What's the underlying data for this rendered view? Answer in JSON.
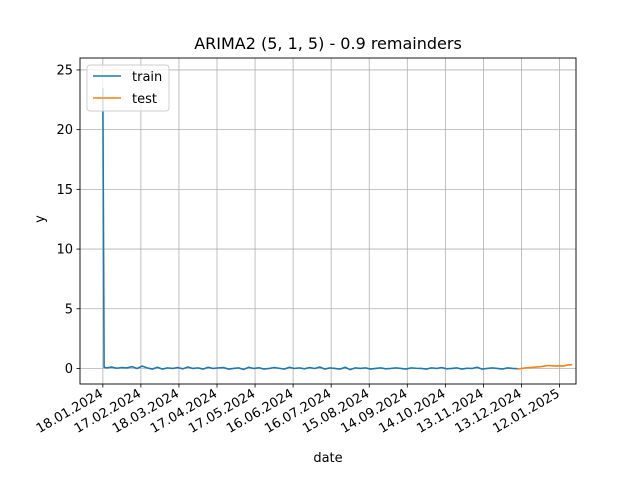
{
  "chart_data": {
    "type": "line",
    "title": "ARIMA2 (5, 1, 5) - 0.9 remainders",
    "xlabel": "date",
    "ylabel": "y",
    "x_ticks": [
      "18.01.2024",
      "17.02.2024",
      "18.03.2024",
      "17.04.2024",
      "17.05.2024",
      "16.06.2024",
      "16.07.2024",
      "15.08.2024",
      "14.09.2024",
      "14.10.2024",
      "13.11.2024",
      "13.12.2024",
      "12.01.2025"
    ],
    "y_ticks": [
      0,
      5,
      10,
      15,
      20,
      25
    ],
    "xlim": [
      "2024-01-18",
      "2025-01-25"
    ],
    "ylim": [
      -1.3,
      26
    ],
    "grid": true,
    "legend_position": "top-left",
    "colors": {
      "train": "#1f77b4",
      "test": "#ff7f0e"
    },
    "series": [
      {
        "name": "train",
        "color": "#1f77b4",
        "x": [
          "2024-01-18",
          "2024-01-19",
          "2024-01-21",
          "2024-01-25",
          "2024-01-29",
          "2024-02-02",
          "2024-02-06",
          "2024-02-10",
          "2024-02-14",
          "2024-02-18",
          "2024-02-22",
          "2024-02-26",
          "2024-03-01",
          "2024-03-05",
          "2024-03-09",
          "2024-03-13",
          "2024-03-17",
          "2024-03-21",
          "2024-03-25",
          "2024-03-29",
          "2024-04-02",
          "2024-04-06",
          "2024-04-10",
          "2024-04-14",
          "2024-04-18",
          "2024-04-22",
          "2024-04-26",
          "2024-04-30",
          "2024-05-04",
          "2024-05-08",
          "2024-05-12",
          "2024-05-16",
          "2024-05-20",
          "2024-05-24",
          "2024-05-28",
          "2024-06-01",
          "2024-06-05",
          "2024-06-09",
          "2024-06-13",
          "2024-06-17",
          "2024-06-21",
          "2024-06-25",
          "2024-06-29",
          "2024-07-03",
          "2024-07-07",
          "2024-07-11",
          "2024-07-15",
          "2024-07-19",
          "2024-07-23",
          "2024-07-27",
          "2024-07-31",
          "2024-08-04",
          "2024-08-08",
          "2024-08-12",
          "2024-08-16",
          "2024-08-20",
          "2024-08-24",
          "2024-08-28",
          "2024-09-01",
          "2024-09-05",
          "2024-09-09",
          "2024-09-13",
          "2024-09-17",
          "2024-09-21",
          "2024-09-25",
          "2024-09-29",
          "2024-10-03",
          "2024-10-07",
          "2024-10-11",
          "2024-10-15",
          "2024-10-19",
          "2024-10-23",
          "2024-10-27",
          "2024-10-31",
          "2024-11-04",
          "2024-11-08",
          "2024-11-12",
          "2024-11-16",
          "2024-11-20",
          "2024-11-24",
          "2024-11-28",
          "2024-12-02",
          "2024-12-06",
          "2024-12-10"
        ],
        "y": [
          23.5,
          0.1,
          0.05,
          0.12,
          0.02,
          0.08,
          0.05,
          0.15,
          0.0,
          0.2,
          0.05,
          -0.05,
          0.1,
          -0.05,
          0.05,
          0.0,
          0.08,
          -0.03,
          0.12,
          0.0,
          0.05,
          -0.05,
          0.1,
          0.0,
          0.05,
          0.08,
          -0.05,
          0.0,
          0.05,
          -0.08,
          0.1,
          0.0,
          0.06,
          -0.05,
          0.0,
          0.08,
          0.02,
          -0.05,
          0.1,
          0.0,
          0.05,
          -0.03,
          0.08,
          0.0,
          0.12,
          -0.05,
          0.05,
          0.0,
          -0.05,
          0.1,
          -0.1,
          0.05,
          0.0,
          0.05,
          -0.05,
          0.0,
          0.05,
          -0.03,
          0.0,
          0.05,
          0.0,
          -0.05,
          0.05,
          0.02,
          0.0,
          -0.05,
          0.05,
          0.0,
          0.08,
          -0.03,
          0.0,
          0.05,
          -0.05,
          0.02,
          0.0,
          0.1,
          -0.05,
          0.0,
          0.05,
          0.0,
          -0.05,
          0.05,
          0.0,
          -0.02
        ]
      },
      {
        "name": "test",
        "color": "#ff7f0e",
        "x": [
          "2024-12-10",
          "2024-12-16",
          "2024-12-22",
          "2024-12-28",
          "2025-01-03",
          "2025-01-09",
          "2025-01-13",
          "2025-01-15",
          "2025-01-19",
          "2025-01-22"
        ],
        "y": [
          -0.05,
          0.05,
          0.1,
          0.15,
          0.25,
          0.2,
          0.22,
          0.2,
          0.3,
          0.32
        ]
      }
    ]
  }
}
